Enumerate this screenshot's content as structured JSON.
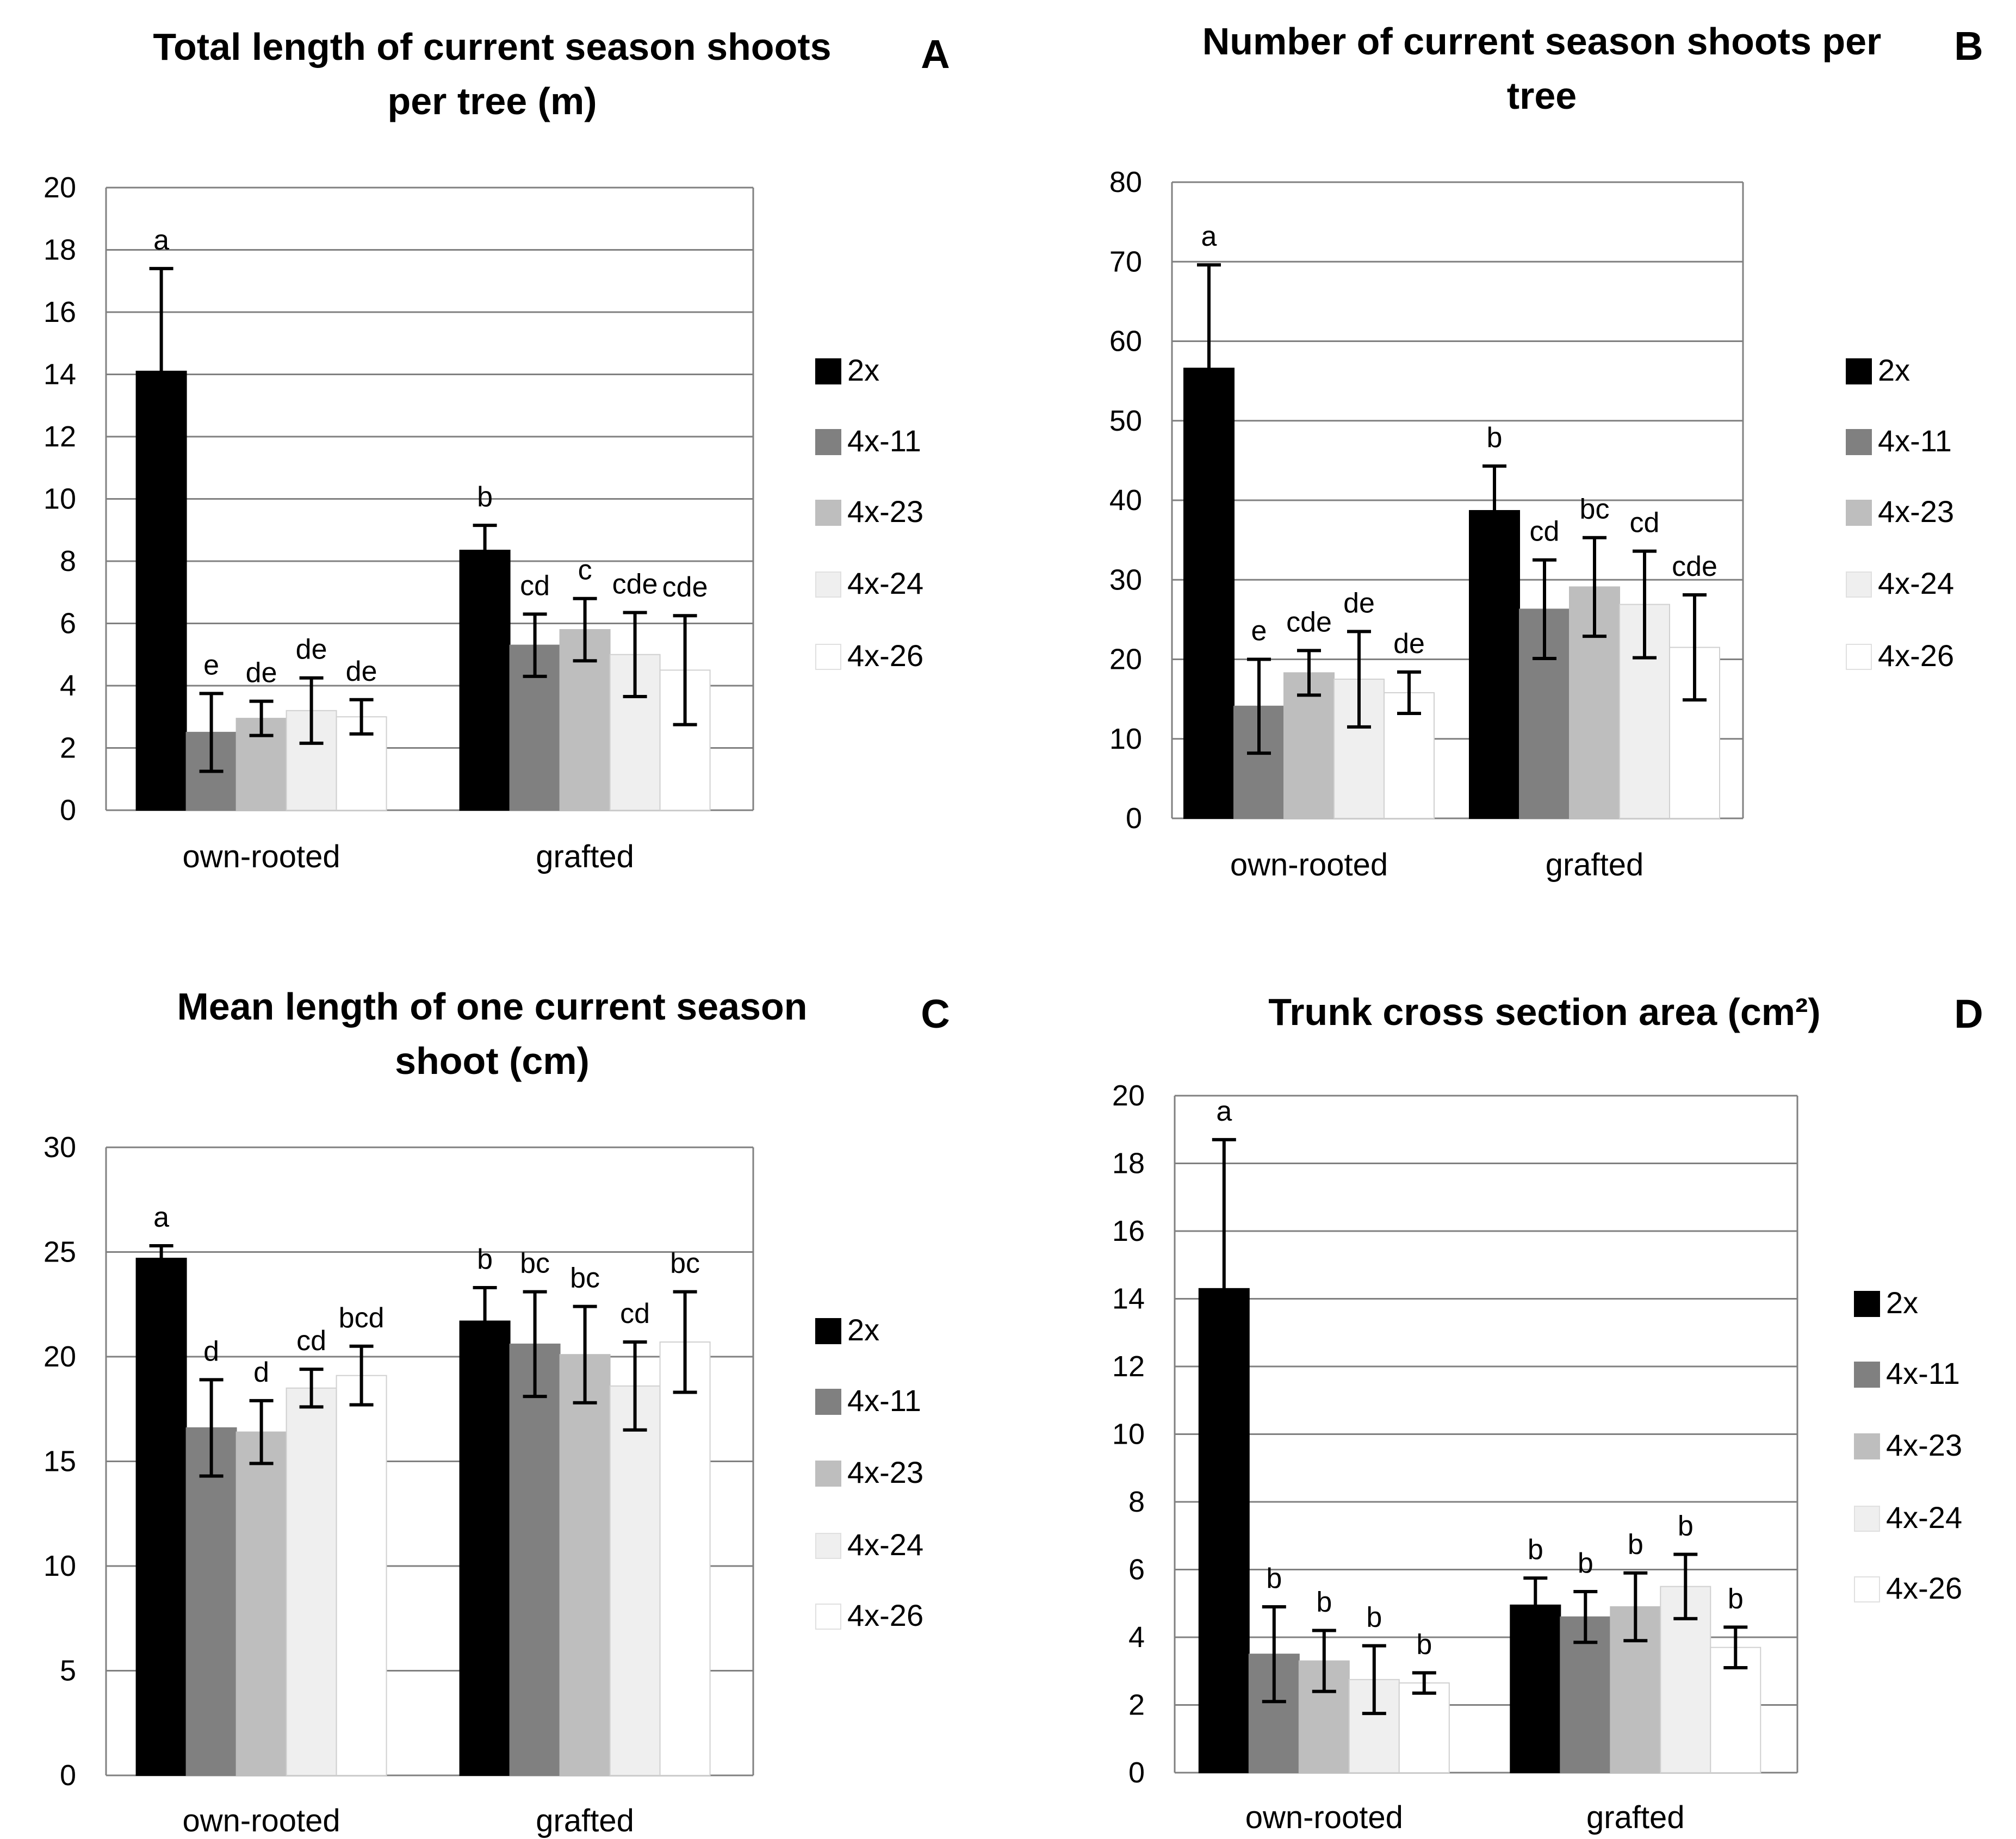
{
  "chart_data": [
    {
      "type": "bar",
      "panel": "A",
      "title": "Total length of current season shoots per tree (m)",
      "title_lines": [
        "Total length of current season shoots",
        "per tree (m)"
      ],
      "categories": [
        "own-rooted",
        "grafted"
      ],
      "ylim": [
        0,
        20
      ],
      "yticks": [
        "0",
        "2",
        "4",
        "6",
        "8",
        "10",
        "12",
        "14",
        "16",
        "18",
        "20"
      ],
      "series": [
        {
          "name": "2x",
          "color": "#000000",
          "values": [
            14.1,
            8.35
          ],
          "errors": [
            3.3,
            0.8
          ],
          "letters": [
            "a",
            "b"
          ]
        },
        {
          "name": "4x-11",
          "color": "#808080",
          "values": [
            2.5,
            5.3
          ],
          "errors": [
            1.25,
            1.0
          ],
          "letters": [
            "e",
            "cd"
          ]
        },
        {
          "name": "4x-23",
          "color": "#bebebe",
          "values": [
            2.95,
            5.8
          ],
          "errors": [
            0.55,
            1.0
          ],
          "letters": [
            "de",
            "c"
          ]
        },
        {
          "name": "4x-24",
          "color": "#efefef",
          "values": [
            3.2,
            5.0
          ],
          "errors": [
            1.05,
            1.35
          ],
          "letters": [
            "de",
            "cde"
          ]
        },
        {
          "name": "4x-26",
          "color": "#ffffff",
          "values": [
            3.0,
            4.5
          ],
          "errors": [
            0.55,
            1.75
          ],
          "letters": [
            "de",
            "cde"
          ]
        }
      ],
      "legend": [
        "2x",
        "4x-11",
        "4x-23",
        "4x-24",
        "4x-26"
      ],
      "grid": true,
      "legend_position": "right"
    },
    {
      "type": "bar",
      "panel": "B",
      "title": "Number of current season shoots per tree",
      "title_lines": [
        "Number of current season shoots per",
        "tree"
      ],
      "categories": [
        "own-rooted",
        "grafted"
      ],
      "ylim": [
        0,
        80
      ],
      "yticks": [
        "0",
        "10",
        "20",
        "30",
        "40",
        "50",
        "60",
        "70",
        "80"
      ],
      "series": [
        {
          "name": "2x",
          "color": "#000000",
          "values": [
            56.6,
            38.7
          ],
          "errors": [
            13.0,
            5.6
          ],
          "letters": [
            "a",
            "b"
          ]
        },
        {
          "name": "4x-11",
          "color": "#808080",
          "values": [
            14.1,
            26.3
          ],
          "errors": [
            5.9,
            6.2
          ],
          "letters": [
            "e",
            "cd"
          ]
        },
        {
          "name": "4x-23",
          "color": "#bebebe",
          "values": [
            18.3,
            29.1
          ],
          "errors": [
            2.8,
            6.2
          ],
          "letters": [
            "cde",
            "bc"
          ]
        },
        {
          "name": "4x-24",
          "color": "#efefef",
          "values": [
            17.5,
            26.9
          ],
          "errors": [
            6.0,
            6.7
          ],
          "letters": [
            "de",
            "cd"
          ]
        },
        {
          "name": "4x-26",
          "color": "#ffffff",
          "values": [
            15.8,
            21.5
          ],
          "errors": [
            2.6,
            6.6
          ],
          "letters": [
            "de",
            "cde"
          ]
        }
      ],
      "legend": [
        "2x",
        "4x-11",
        "4x-23",
        "4x-24",
        "4x-26"
      ],
      "grid": true,
      "legend_position": "right"
    },
    {
      "type": "bar",
      "panel": "C",
      "title": "Mean length of one current season shoot (cm)",
      "title_lines": [
        "Mean length of one current season",
        "shoot (cm)"
      ],
      "categories": [
        "own-rooted",
        "grafted"
      ],
      "ylim": [
        0,
        30
      ],
      "yticks": [
        "0",
        "5",
        "10",
        "15",
        "20",
        "25",
        "30"
      ],
      "series": [
        {
          "name": "2x",
          "color": "#000000",
          "values": [
            24.7,
            21.7
          ],
          "errors": [
            0.6,
            1.6
          ],
          "letters": [
            "a",
            "b"
          ]
        },
        {
          "name": "4x-11",
          "color": "#808080",
          "values": [
            16.6,
            20.6
          ],
          "errors": [
            2.3,
            2.5
          ],
          "letters": [
            "d",
            "bc"
          ]
        },
        {
          "name": "4x-23",
          "color": "#bebebe",
          "values": [
            16.4,
            20.1
          ],
          "errors": [
            1.5,
            2.3
          ],
          "letters": [
            "d",
            "bc"
          ]
        },
        {
          "name": "4x-24",
          "color": "#efefef",
          "values": [
            18.5,
            18.6
          ],
          "errors": [
            0.9,
            2.1
          ],
          "letters": [
            "cd",
            "cd"
          ]
        },
        {
          "name": "4x-26",
          "color": "#ffffff",
          "values": [
            19.1,
            20.7
          ],
          "errors": [
            1.4,
            2.4
          ],
          "letters": [
            "bcd",
            "bc"
          ]
        }
      ],
      "legend": [
        "2x",
        "4x-11",
        "4x-23",
        "4x-24",
        "4x-26"
      ],
      "grid": true,
      "legend_position": "right"
    },
    {
      "type": "bar",
      "panel": "D",
      "title": "Trunk cross section area (cm²)",
      "title_lines": [
        "Trunk cross section area (cm²)"
      ],
      "categories": [
        "own-rooted",
        "grafted"
      ],
      "ylim": [
        0,
        20
      ],
      "yticks": [
        "0",
        "2",
        "4",
        "6",
        "8",
        "10",
        "12",
        "14",
        "16",
        "18",
        "20"
      ],
      "series": [
        {
          "name": "2x",
          "color": "#000000",
          "values": [
            14.3,
            4.95
          ],
          "errors": [
            4.4,
            0.8
          ],
          "letters": [
            "a",
            "b"
          ]
        },
        {
          "name": "4x-11",
          "color": "#808080",
          "values": [
            3.5,
            4.6
          ],
          "errors": [
            1.4,
            0.75
          ],
          "letters": [
            "b",
            "b"
          ]
        },
        {
          "name": "4x-23",
          "color": "#bebebe",
          "values": [
            3.3,
            4.9
          ],
          "errors": [
            0.9,
            1.0
          ],
          "letters": [
            "b",
            "b"
          ]
        },
        {
          "name": "4x-24",
          "color": "#efefef",
          "values": [
            2.75,
            5.5
          ],
          "errors": [
            1.0,
            0.95
          ],
          "letters": [
            "b",
            "b"
          ]
        },
        {
          "name": "4x-26",
          "color": "#ffffff",
          "values": [
            2.65,
            3.7
          ],
          "errors": [
            0.3,
            0.6
          ],
          "letters": [
            "b",
            "b"
          ]
        }
      ],
      "legend": [
        "2x",
        "4x-11",
        "4x-23",
        "4x-24",
        "4x-26"
      ],
      "grid": true,
      "legend_position": "right"
    }
  ]
}
